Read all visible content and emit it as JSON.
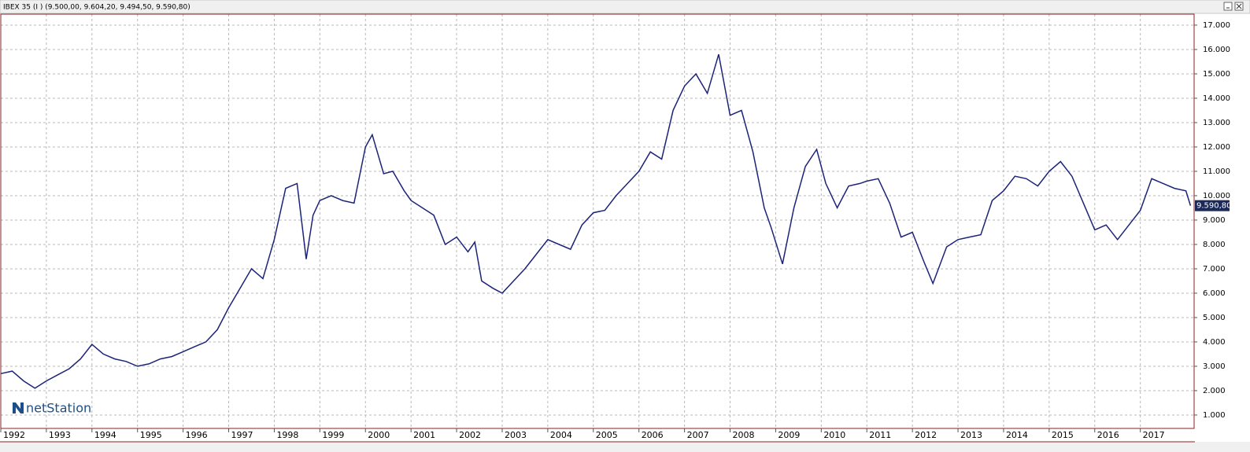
{
  "chart_data": {
    "type": "line",
    "title": "IBEX 35 (I ) (9.500,00, 9.604,20, 9.494,50, 9.590,80)",
    "logo": "netStation",
    "color": "#1c2378",
    "grid": true,
    "x": [
      1992.0,
      1992.25,
      1992.5,
      1992.75,
      1993.0,
      1993.25,
      1993.5,
      1993.75,
      1994.0,
      1994.25,
      1994.5,
      1994.75,
      1995.0,
      1995.25,
      1995.5,
      1995.75,
      1996.0,
      1996.25,
      1996.5,
      1996.75,
      1997.0,
      1997.25,
      1997.5,
      1997.75,
      1998.0,
      1998.25,
      1998.5,
      1998.7,
      1998.85,
      1999.0,
      1999.25,
      1999.5,
      1999.75,
      2000.0,
      2000.15,
      2000.4,
      2000.6,
      2000.85,
      2001.0,
      2001.25,
      2001.5,
      2001.75,
      2002.0,
      2002.25,
      2002.4,
      2002.55,
      2002.8,
      2003.0,
      2003.25,
      2003.5,
      2003.75,
      2004.0,
      2004.25,
      2004.5,
      2004.75,
      2005.0,
      2005.25,
      2005.5,
      2005.75,
      2006.0,
      2006.25,
      2006.5,
      2006.75,
      2007.0,
      2007.25,
      2007.5,
      2007.75,
      2008.0,
      2008.25,
      2008.5,
      2008.75,
      2008.9,
      2009.15,
      2009.4,
      2009.65,
      2009.9,
      2010.1,
      2010.35,
      2010.6,
      2010.85,
      2011.0,
      2011.25,
      2011.5,
      2011.75,
      2012.0,
      2012.25,
      2012.45,
      2012.75,
      2013.0,
      2013.25,
      2013.5,
      2013.75,
      2014.0,
      2014.25,
      2014.5,
      2014.75,
      2015.0,
      2015.25,
      2015.5,
      2015.75,
      2016.0,
      2016.25,
      2016.5,
      2016.75,
      2017.0,
      2017.25,
      2017.5,
      2017.75,
      2018.0,
      2018.1
    ],
    "values": [
      2700,
      2800,
      2400,
      2100,
      2400,
      2650,
      2900,
      3300,
      3900,
      3500,
      3300,
      3200,
      3000,
      3100,
      3300,
      3400,
      3600,
      3800,
      4000,
      4500,
      5400,
      6200,
      7000,
      6600,
      8200,
      10300,
      10500,
      7400,
      9200,
      9800,
      10000,
      9800,
      9700,
      12000,
      12500,
      10900,
      11000,
      10200,
      9800,
      9500,
      9200,
      8000,
      8300,
      7700,
      8100,
      6500,
      6200,
      6000,
      6500,
      7000,
      7600,
      8200,
      8000,
      7800,
      8800,
      9300,
      9400,
      10000,
      10500,
      11000,
      11800,
      11500,
      13500,
      14500,
      15000,
      14200,
      15800,
      13300,
      13500,
      11800,
      9500,
      8700,
      7200,
      9500,
      11200,
      11900,
      10500,
      9500,
      10400,
      10500,
      10600,
      10700,
      9700,
      8300,
      8500,
      7300,
      6400,
      7900,
      8200,
      8300,
      8400,
      9800,
      10200,
      10800,
      10700,
      10400,
      11000,
      11400,
      10800,
      9700,
      8600,
      8800,
      8200,
      8800,
      9400,
      10700,
      10500,
      10300,
      10200,
      9590.8
    ],
    "last_price": {
      "value": 9590.8,
      "label": "9.590,80"
    },
    "xlim": [
      1992,
      2018.18
    ],
    "xticks": [
      1992,
      1993,
      1994,
      1995,
      1996,
      1997,
      1998,
      1999,
      2000,
      2001,
      2002,
      2003,
      2004,
      2005,
      2006,
      2007,
      2008,
      2009,
      2010,
      2011,
      2012,
      2013,
      2014,
      2015,
      2016,
      2017
    ],
    "ylim": [
      450,
      17450
    ],
    "yticks": [
      {
        "value": 1000,
        "label": "1.000"
      },
      {
        "value": 2000,
        "label": "2.000"
      },
      {
        "value": 3000,
        "label": "3.000"
      },
      {
        "value": 4000,
        "label": "4.000"
      },
      {
        "value": 5000,
        "label": "5.000"
      },
      {
        "value": 6000,
        "label": "6.000"
      },
      {
        "value": 7000,
        "label": "7.000"
      },
      {
        "value": 8000,
        "label": "8.000"
      },
      {
        "value": 9000,
        "label": "9.000"
      },
      {
        "value": 10000,
        "label": "10.000"
      },
      {
        "value": 11000,
        "label": "11.000"
      },
      {
        "value": 12000,
        "label": "12.000"
      },
      {
        "value": 13000,
        "label": "13.000"
      },
      {
        "value": 14000,
        "label": "14.000"
      },
      {
        "value": 15000,
        "label": "15.000"
      },
      {
        "value": 16000,
        "label": "16.000"
      },
      {
        "value": 17000,
        "label": "17.000"
      }
    ]
  }
}
